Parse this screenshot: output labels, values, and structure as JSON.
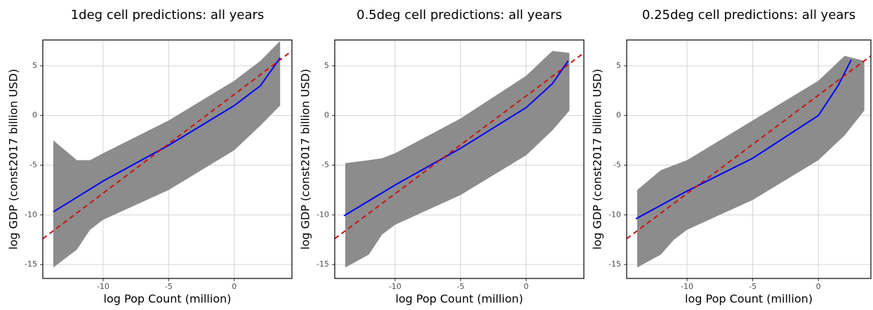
{
  "chart_data": [
    {
      "type": "scatter-fit",
      "title": "1deg cell predictions: all years",
      "x_label": "log Pop Count (million)",
      "y_label": "log GDP (const2017 billion USD)",
      "xlim": [
        -14.6,
        4.4
      ],
      "ylim": [
        -16.4,
        7.6
      ],
      "xticks": [
        -10,
        -5,
        0
      ],
      "yticks": [
        -15,
        -10,
        -5,
        0,
        5
      ],
      "grid": true,
      "band": {
        "color": "#8c8c8c",
        "x": [
          -13.8,
          -12,
          -11,
          -10,
          -5,
          0,
          2,
          3.5
        ],
        "low": [
          -15.3,
          -13.5,
          -11.5,
          -10.5,
          -7.5,
          -3.5,
          -1,
          1
        ],
        "high": [
          -2.5,
          -4.5,
          -4.5,
          -3.8,
          -0.5,
          3.5,
          5.5,
          7.5
        ]
      },
      "fit": {
        "color": "#0000ff",
        "x": [
          -13.8,
          -10,
          -5,
          0,
          2,
          3.5
        ],
        "y": [
          -9.7,
          -6.6,
          -3.0,
          1.0,
          3.0,
          5.8
        ]
      },
      "reference": {
        "color": "#cc1111",
        "x": [
          -14.6,
          4.4
        ],
        "y": [
          -12.4,
          6.5
        ]
      }
    },
    {
      "type": "scatter-fit",
      "title": "0.5deg cell predictions: all years",
      "x_label": "log Pop Count (million)",
      "y_label": "log GDP (const2017 billion USD)",
      "xlim": [
        -14.6,
        4.4
      ],
      "ylim": [
        -16.4,
        7.6
      ],
      "xticks": [
        -10,
        -5,
        0
      ],
      "yticks": [
        -15,
        -10,
        -5,
        0,
        5
      ],
      "grid": true,
      "band": {
        "color": "#8c8c8c",
        "x": [
          -13.8,
          -12,
          -11,
          -10,
          -5,
          0,
          2,
          3.3
        ],
        "low": [
          -15.3,
          -14,
          -12,
          -11,
          -8,
          -4,
          -1.5,
          0.5
        ],
        "high": [
          -4.8,
          -4.5,
          -4.3,
          -3.8,
          -0.3,
          4,
          6.5,
          6.3
        ]
      },
      "fit": {
        "color": "#0000ff",
        "x": [
          -13.9,
          -10,
          -5,
          0,
          2,
          3.2
        ],
        "y": [
          -10.1,
          -7.0,
          -3.3,
          0.8,
          3.2,
          5.5
        ]
      },
      "reference": {
        "color": "#cc1111",
        "x": [
          -14.6,
          4.4
        ],
        "y": [
          -12.4,
          6.3
        ]
      }
    },
    {
      "type": "scatter-fit",
      "title": "0.25deg cell predictions: all years",
      "x_label": "log Pop Count (million)",
      "y_label": "log GDP (const2017 billion USD)",
      "xlim": [
        -14.6,
        4.0
      ],
      "ylim": [
        -16.4,
        7.6
      ],
      "xticks": [
        -10,
        -5,
        0
      ],
      "yticks": [
        -15,
        -10,
        -5,
        0,
        5
      ],
      "grid": true,
      "band": {
        "color": "#8c8c8c",
        "x": [
          -13.8,
          -12,
          -11,
          -10,
          -5,
          0,
          2,
          3.5
        ],
        "low": [
          -15.3,
          -14,
          -12.5,
          -11.5,
          -8.5,
          -4.5,
          -2,
          0.5
        ],
        "high": [
          -7.5,
          -5.5,
          -5,
          -4.5,
          -0.5,
          3.5,
          6,
          5.5
        ]
      },
      "fit": {
        "color": "#0000ff",
        "x": [
          -13.9,
          -10,
          -5,
          0,
          1.5,
          2.5
        ],
        "y": [
          -10.4,
          -7.6,
          -4.3,
          0.0,
          3.0,
          5.6
        ]
      },
      "reference": {
        "color": "#cc1111",
        "x": [
          -14.6,
          4.0
        ],
        "y": [
          -12.4,
          6.0
        ]
      }
    }
  ]
}
